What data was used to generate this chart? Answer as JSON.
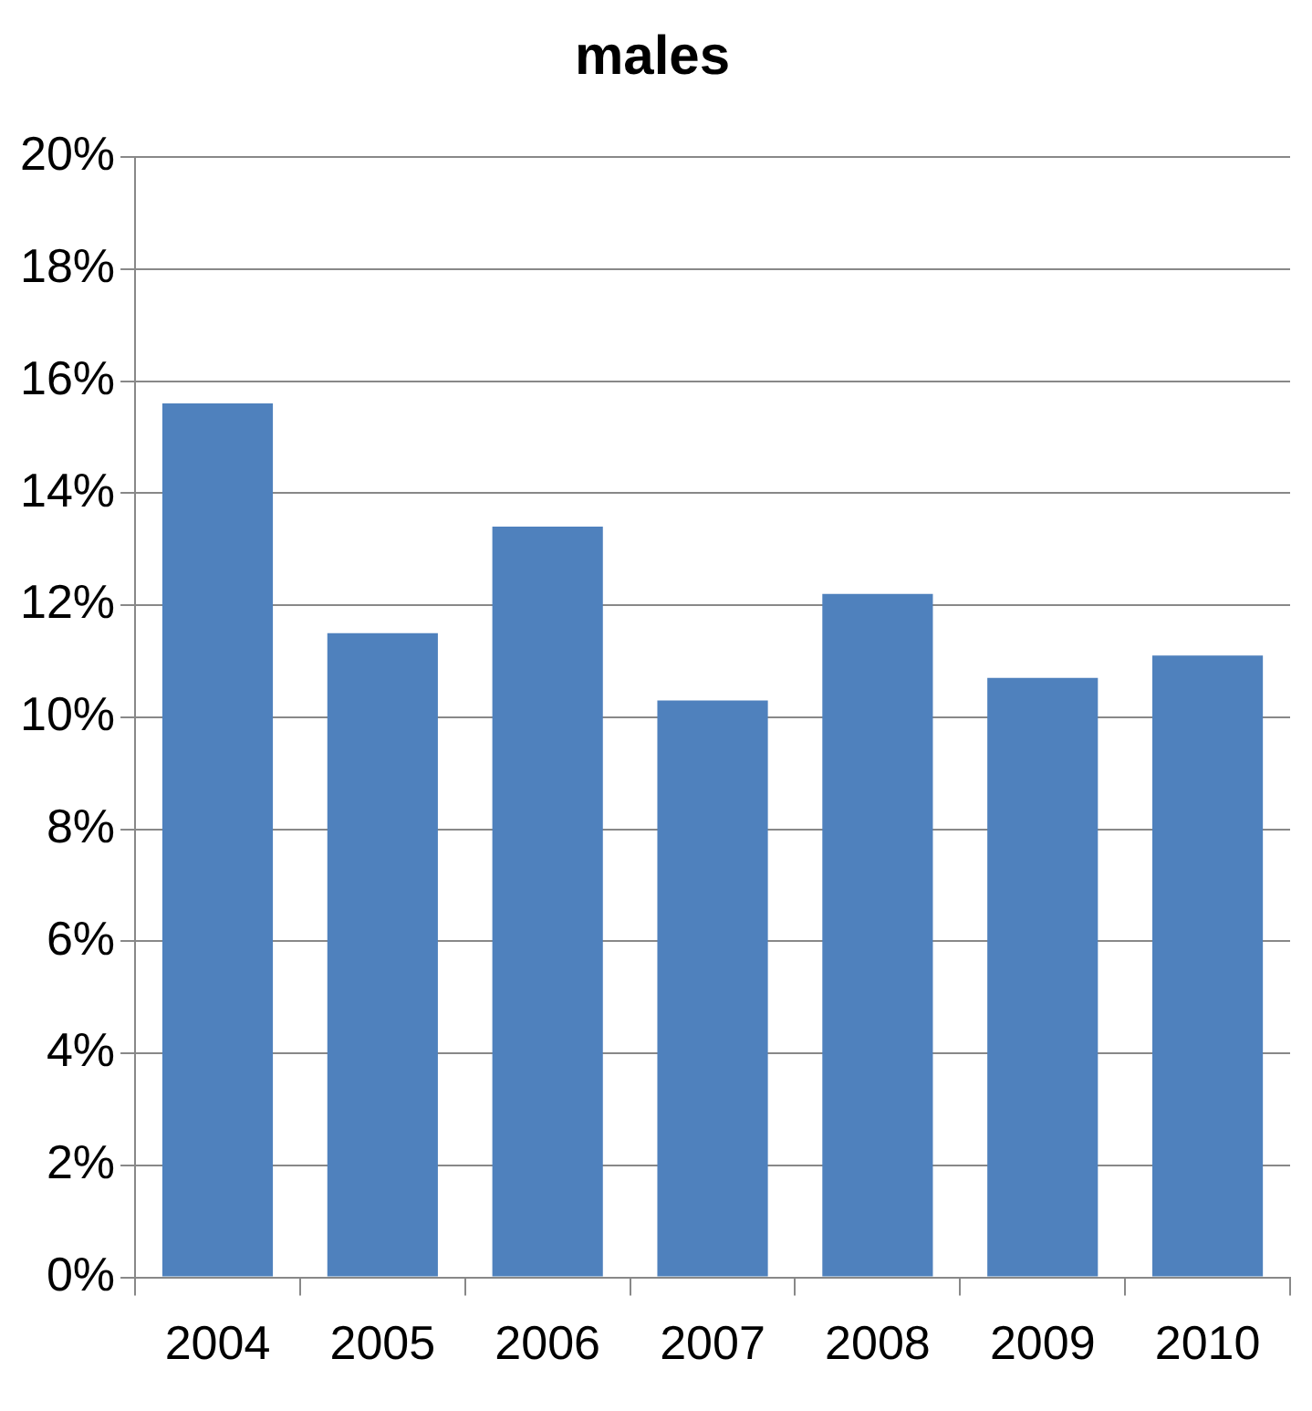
{
  "chart_data": {
    "type": "bar",
    "title": "males",
    "categories": [
      "2004",
      "2005",
      "2006",
      "2007",
      "2008",
      "2009",
      "2010"
    ],
    "values": [
      15.6,
      11.5,
      13.4,
      10.3,
      12.2,
      10.7,
      11.1
    ],
    "color": "#4f81bd",
    "ylim": [
      0,
      20
    ],
    "yticks": [
      {
        "value": 0,
        "label": "0%"
      },
      {
        "value": 2,
        "label": "2%"
      },
      {
        "value": 4,
        "label": "4%"
      },
      {
        "value": 6,
        "label": "6%"
      },
      {
        "value": 8,
        "label": "8%"
      },
      {
        "value": 10,
        "label": "10%"
      },
      {
        "value": 12,
        "label": "12%"
      },
      {
        "value": 14,
        "label": "14%"
      },
      {
        "value": 16,
        "label": "16%"
      },
      {
        "value": 18,
        "label": "18%"
      },
      {
        "value": 20,
        "label": "20%"
      }
    ],
    "grid": "y"
  }
}
